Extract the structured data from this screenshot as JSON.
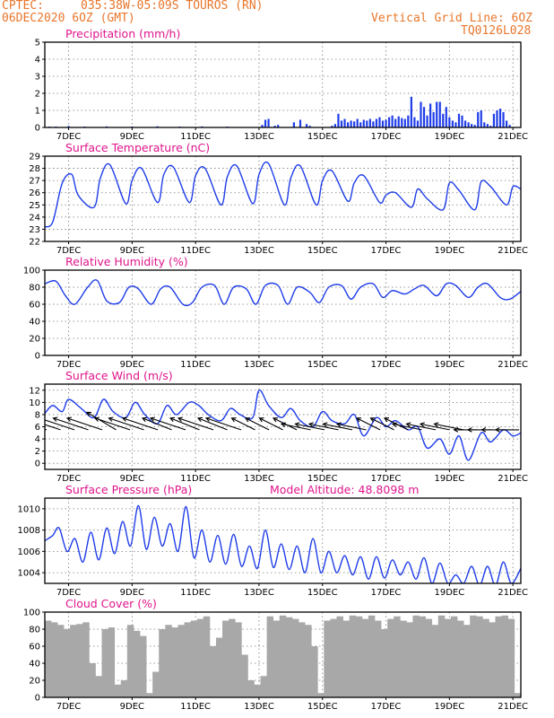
{
  "header": {
    "source": "CPTEC:",
    "location": "035:38W-05:09S  TOUROS (RN)",
    "run": "06DEC2020 6OZ (GMT)",
    "grid_note": "Vertical Grid Line: 6OZ",
    "model_code": "TQ0126L028"
  },
  "colors": {
    "header": "#e8762b",
    "title": "#e0158c",
    "series": "#1f3de8",
    "cloud": "#a8a8a8"
  },
  "chart_data": [
    {
      "type": "bar",
      "title": "Precipitation (mm/h)",
      "xlim": [
        6.25,
        21.25
      ],
      "ylim": [
        0,
        5
      ],
      "yticks": [
        0,
        1,
        2,
        3,
        4,
        5
      ],
      "xticks": [
        {
          "v": 7,
          "label": "7DEC"
        },
        {
          "v": 9,
          "label": "9DEC"
        },
        {
          "v": 11,
          "label": "11DEC"
        },
        {
          "v": 13,
          "label": "13DEC"
        },
        {
          "v": 15,
          "label": "15DEC"
        },
        {
          "v": 17,
          "label": "17DEC"
        },
        {
          "v": 19,
          "label": "19DEC"
        },
        {
          "v": 21,
          "label": "21DEC"
        }
      ],
      "x": [
        6.4,
        6.6,
        7.0,
        7.5,
        8.2,
        9.0,
        9.8,
        10.5,
        11.2,
        12.0,
        13.1,
        13.2,
        13.3,
        13.5,
        13.6,
        14.1,
        14.3,
        14.5,
        14.6,
        15.3,
        15.4,
        15.5,
        15.6,
        15.7,
        15.8,
        15.9,
        16.0,
        16.1,
        16.2,
        16.3,
        16.4,
        16.5,
        16.6,
        16.7,
        16.8,
        16.9,
        17.0,
        17.1,
        17.2,
        17.3,
        17.4,
        17.5,
        17.6,
        17.7,
        17.8,
        17.9,
        18.0,
        18.1,
        18.2,
        18.3,
        18.4,
        18.5,
        18.6,
        18.7,
        18.8,
        18.9,
        19.0,
        19.1,
        19.2,
        19.3,
        19.4,
        19.5,
        19.6,
        19.7,
        19.8,
        19.9,
        20.0,
        20.1,
        20.2,
        20.3,
        20.4,
        20.5,
        20.6,
        20.7,
        20.8,
        20.9
      ],
      "values": [
        0.05,
        0.05,
        0.08,
        0.05,
        0.06,
        0.05,
        0.07,
        0.05,
        0.06,
        0.05,
        0.15,
        0.45,
        0.5,
        0.1,
        0.15,
        0.3,
        0.45,
        0.2,
        0.1,
        0.1,
        0.2,
        0.8,
        0.4,
        0.5,
        0.3,
        0.4,
        0.35,
        0.5,
        0.3,
        0.45,
        0.4,
        0.5,
        0.35,
        0.5,
        0.6,
        0.4,
        0.45,
        0.6,
        0.7,
        0.5,
        0.65,
        0.55,
        0.5,
        0.7,
        1.8,
        0.6,
        0.4,
        1.5,
        1.2,
        0.7,
        1.4,
        0.9,
        1.5,
        1.5,
        0.8,
        1.2,
        0.6,
        0.4,
        0.3,
        0.8,
        0.7,
        0.4,
        0.3,
        0.2,
        0.15,
        0.9,
        1.0,
        0.3,
        0.2,
        0.1,
        0.8,
        1.0,
        1.1,
        0.9,
        0.4,
        0.15
      ]
    },
    {
      "type": "line",
      "title": "Surface Temperature (nC)",
      "xlim": [
        6.25,
        21.25
      ],
      "ylim": [
        22,
        29
      ],
      "yticks": [
        22,
        23,
        24,
        25,
        26,
        27,
        28,
        29
      ],
      "xticks": [
        {
          "v": 7,
          "label": "7DEC"
        },
        {
          "v": 9,
          "label": "9DEC"
        },
        {
          "v": 11,
          "label": "11DEC"
        },
        {
          "v": 13,
          "label": "13DEC"
        },
        {
          "v": 15,
          "label": "15DEC"
        },
        {
          "v": 17,
          "label": "17DEC"
        },
        {
          "v": 19,
          "label": "19DEC"
        },
        {
          "v": 21,
          "label": "21DEC"
        }
      ],
      "x": [
        6.25,
        6.5,
        6.8,
        7.1,
        7.3,
        7.8,
        8.0,
        8.3,
        8.8,
        9.0,
        9.3,
        9.8,
        10.0,
        10.3,
        10.8,
        11.0,
        11.3,
        11.8,
        12.0,
        12.3,
        12.8,
        13.0,
        13.3,
        13.8,
        14.0,
        14.3,
        14.8,
        15.0,
        15.3,
        15.8,
        16.0,
        16.3,
        16.8,
        17.0,
        17.3,
        17.8,
        18.0,
        18.3,
        18.8,
        19.0,
        19.3,
        19.8,
        20.0,
        20.3,
        20.8,
        21.0,
        21.25
      ],
      "values": [
        23.2,
        23.6,
        26.8,
        27.5,
        25.8,
        24.8,
        27.2,
        28.3,
        25.1,
        27.0,
        28.0,
        25.2,
        27.5,
        28.1,
        25.2,
        27.4,
        28.0,
        25.0,
        27.3,
        28.2,
        25.1,
        27.5,
        28.4,
        25.0,
        27.2,
        28.2,
        25.0,
        27.0,
        27.8,
        25.3,
        26.8,
        27.4,
        25.2,
        25.8,
        26.0,
        24.8,
        26.3,
        25.5,
        24.6,
        26.8,
        26.2,
        24.6,
        26.9,
        26.5,
        25.0,
        26.5,
        26.3
      ]
    },
    {
      "type": "line",
      "title": "Relative Humidity (%)",
      "xlim": [
        6.25,
        21.25
      ],
      "ylim": [
        0,
        100
      ],
      "yticks": [
        0,
        20,
        40,
        60,
        80,
        100
      ],
      "xticks": [
        {
          "v": 7,
          "label": "7DEC"
        },
        {
          "v": 9,
          "label": "9DEC"
        },
        {
          "v": 11,
          "label": "11DEC"
        },
        {
          "v": 13,
          "label": "13DEC"
        },
        {
          "v": 15,
          "label": "15DEC"
        },
        {
          "v": 17,
          "label": "17DEC"
        },
        {
          "v": 19,
          "label": "19DEC"
        },
        {
          "v": 21,
          "label": "21DEC"
        }
      ],
      "x": [
        6.25,
        6.6,
        6.9,
        7.2,
        7.6,
        7.9,
        8.2,
        8.6,
        8.9,
        9.2,
        9.6,
        9.9,
        10.2,
        10.6,
        10.9,
        11.2,
        11.6,
        11.9,
        12.2,
        12.6,
        12.9,
        13.2,
        13.6,
        13.9,
        14.2,
        14.6,
        14.9,
        15.2,
        15.6,
        15.9,
        16.2,
        16.6,
        16.9,
        17.2,
        17.6,
        17.9,
        18.2,
        18.6,
        18.9,
        19.2,
        19.6,
        19.9,
        20.2,
        20.6,
        20.9,
        21.25
      ],
      "values": [
        84,
        87,
        70,
        60,
        80,
        88,
        64,
        62,
        80,
        78,
        60,
        78,
        80,
        60,
        62,
        80,
        82,
        60,
        80,
        78,
        60,
        82,
        82,
        60,
        80,
        74,
        62,
        80,
        82,
        66,
        80,
        84,
        68,
        76,
        72,
        78,
        82,
        70,
        84,
        82,
        68,
        80,
        84,
        68,
        66,
        75
      ]
    },
    {
      "type": "line",
      "title": "Surface Wind (m/s)",
      "xlim": [
        6.25,
        21.25
      ],
      "ylim": [
        -1,
        13
      ],
      "yticks": [
        0,
        2,
        4,
        6,
        8,
        10,
        12
      ],
      "xticks": [
        {
          "v": 7,
          "label": "7DEC"
        },
        {
          "v": 9,
          "label": "9DEC"
        },
        {
          "v": 11,
          "label": "11DEC"
        },
        {
          "v": 13,
          "label": "13DEC"
        },
        {
          "v": 15,
          "label": "15DEC"
        },
        {
          "v": 17,
          "label": "17DEC"
        },
        {
          "v": 19,
          "label": "19DEC"
        },
        {
          "v": 21,
          "label": "21DEC"
        }
      ],
      "x": [
        6.25,
        6.5,
        6.8,
        7.0,
        7.4,
        7.8,
        8.1,
        8.4,
        8.8,
        9.1,
        9.4,
        9.8,
        10.1,
        10.4,
        10.8,
        11.1,
        11.4,
        11.8,
        12.1,
        12.4,
        12.8,
        13.0,
        13.3,
        13.7,
        14.0,
        14.3,
        14.7,
        15.0,
        15.3,
        15.7,
        16.0,
        16.3,
        16.7,
        17.0,
        17.3,
        17.7,
        18.0,
        18.3,
        18.7,
        19.0,
        19.3,
        19.6,
        20.0,
        20.3,
        20.7,
        21.0,
        21.25
      ],
      "values": [
        8.2,
        9.5,
        8.5,
        10.5,
        9.0,
        7.5,
        10.5,
        8.5,
        7.5,
        10.0,
        8.0,
        6.5,
        9.5,
        8.0,
        10.0,
        9.5,
        8.0,
        7.0,
        9.0,
        8.0,
        7.5,
        12.0,
        9.5,
        7.5,
        9.0,
        7.0,
        6.0,
        8.5,
        7.0,
        6.5,
        8.0,
        4.5,
        7.5,
        6.0,
        7.0,
        5.5,
        6.0,
        2.5,
        4.0,
        1.5,
        4.5,
        0.5,
        5.0,
        3.5,
        5.5,
        4.5,
        5.0
      ],
      "arrows_u": [
        -7,
        -6,
        -6,
        -6,
        -6,
        -5,
        -6,
        -6,
        -6,
        -5,
        -6,
        -5,
        -6,
        -5,
        -6,
        -4,
        -4,
        -4,
        -4,
        -5,
        -5,
        -5,
        -5,
        -5,
        -4,
        -4,
        -4,
        -5,
        -5,
        -5,
        -5,
        -4,
        -4,
        -4,
        -4
      ],
      "arrows_v": [
        2,
        2,
        2,
        2,
        2,
        3,
        2,
        2,
        2,
        2,
        2,
        2,
        2,
        2,
        2,
        2,
        2,
        2,
        2,
        1,
        1,
        1,
        1,
        1,
        2,
        2,
        2,
        1,
        1,
        1,
        1,
        0,
        0,
        0,
        0
      ]
    },
    {
      "type": "line",
      "title": "Surface Pressure (hPa)",
      "subtitle": "Model Altitude: 48.8098 m",
      "xlim": [
        6.25,
        21.25
      ],
      "ylim": [
        1003,
        1011
      ],
      "yticks": [
        1004,
        1006,
        1008,
        1010
      ],
      "xticks": [
        {
          "v": 7,
          "label": "7DEC"
        },
        {
          "v": 9,
          "label": "9DEC"
        },
        {
          "v": 11,
          "label": "11DEC"
        },
        {
          "v": 13,
          "label": "13DEC"
        },
        {
          "v": 15,
          "label": "15DEC"
        },
        {
          "v": 17,
          "label": "17DEC"
        },
        {
          "v": 19,
          "label": "19DEC"
        },
        {
          "v": 21,
          "label": "21DEC"
        }
      ],
      "x": [
        6.25,
        6.5,
        6.7,
        6.95,
        7.2,
        7.45,
        7.7,
        7.95,
        8.2,
        8.45,
        8.7,
        8.95,
        9.2,
        9.45,
        9.7,
        9.95,
        10.2,
        10.45,
        10.7,
        10.95,
        11.2,
        11.45,
        11.7,
        11.95,
        12.2,
        12.45,
        12.7,
        12.95,
        13.2,
        13.45,
        13.7,
        13.95,
        14.2,
        14.45,
        14.7,
        14.95,
        15.2,
        15.45,
        15.7,
        15.95,
        16.2,
        16.45,
        16.7,
        16.95,
        17.2,
        17.45,
        17.7,
        17.95,
        18.2,
        18.45,
        18.7,
        18.95,
        19.2,
        19.45,
        19.7,
        19.95,
        20.2,
        20.45,
        20.7,
        20.95,
        21.25
      ],
      "values": [
        1007.0,
        1007.5,
        1008.2,
        1006.0,
        1007.2,
        1005.0,
        1007.8,
        1005.2,
        1008.2,
        1005.8,
        1008.8,
        1006.5,
        1010.3,
        1006.2,
        1009.2,
        1006.5,
        1008.6,
        1006.0,
        1010.2,
        1005.4,
        1008.0,
        1005.0,
        1007.5,
        1004.8,
        1007.6,
        1004.6,
        1006.5,
        1004.4,
        1008.0,
        1004.5,
        1006.7,
        1004.3,
        1006.5,
        1004.0,
        1007.2,
        1004.0,
        1006.0,
        1004.0,
        1005.6,
        1003.8,
        1005.5,
        1003.4,
        1005.5,
        1003.5,
        1005.2,
        1003.8,
        1005.0,
        1003.4,
        1005.4,
        1003.0,
        1004.9,
        1003.0,
        1003.8,
        1003.0,
        1004.6,
        1002.8,
        1004.6,
        1002.8,
        1005.0,
        1003.0,
        1004.4
      ]
    },
    {
      "type": "bar",
      "title": "Cloud Cover (%)",
      "xlim": [
        6.25,
        21.25
      ],
      "ylim": [
        0,
        100
      ],
      "yticks": [
        0,
        20,
        40,
        60,
        80,
        100
      ],
      "xticks": [
        {
          "v": 7,
          "label": "7DEC"
        },
        {
          "v": 9,
          "label": "9DEC"
        },
        {
          "v": 11,
          "label": "11DEC"
        },
        {
          "v": 13,
          "label": "13DEC"
        },
        {
          "v": 15,
          "label": "15DEC"
        },
        {
          "v": 17,
          "label": "17DEC"
        },
        {
          "v": 19,
          "label": "19DEC"
        },
        {
          "v": 21,
          "label": "21DEC"
        }
      ],
      "x": [
        6.35,
        6.55,
        6.75,
        6.95,
        7.15,
        7.35,
        7.55,
        7.75,
        7.95,
        8.15,
        8.35,
        8.55,
        8.75,
        8.95,
        9.15,
        9.35,
        9.55,
        9.75,
        9.95,
        10.15,
        10.35,
        10.55,
        10.75,
        10.95,
        11.15,
        11.35,
        11.55,
        11.75,
        11.95,
        12.15,
        12.35,
        12.55,
        12.75,
        12.95,
        13.15,
        13.35,
        13.55,
        13.75,
        13.95,
        14.15,
        14.35,
        14.55,
        14.75,
        14.95,
        15.15,
        15.35,
        15.55,
        15.75,
        15.95,
        16.15,
        16.35,
        16.55,
        16.75,
        16.95,
        17.15,
        17.35,
        17.55,
        17.75,
        17.95,
        18.15,
        18.35,
        18.55,
        18.75,
        18.95,
        19.15,
        19.35,
        19.55,
        19.75,
        19.95,
        20.15,
        20.35,
        20.55,
        20.75,
        20.95,
        21.15
      ],
      "values": [
        90,
        88,
        85,
        80,
        85,
        86,
        88,
        40,
        25,
        80,
        82,
        15,
        20,
        85,
        78,
        72,
        5,
        30,
        80,
        85,
        82,
        85,
        88,
        90,
        92,
        95,
        60,
        70,
        90,
        92,
        88,
        50,
        20,
        15,
        25,
        95,
        90,
        96,
        94,
        92,
        88,
        85,
        60,
        5,
        90,
        92,
        95,
        90,
        96,
        95,
        92,
        96,
        90,
        80,
        92,
        95,
        90,
        88,
        96,
        95,
        92,
        85,
        96,
        92,
        95,
        90,
        85,
        96,
        95,
        92,
        88,
        95,
        96,
        92,
        5
      ]
    }
  ]
}
